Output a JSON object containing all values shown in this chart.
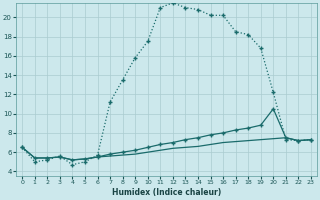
{
  "xlabel": "Humidex (Indice chaleur)",
  "bg_color": "#cce8ec",
  "grid_color": "#aaccd0",
  "line_color": "#1a6b6b",
  "xlim": [
    -0.5,
    23.5
  ],
  "ylim": [
    3.5,
    21.5
  ],
  "xticks": [
    0,
    1,
    2,
    3,
    4,
    5,
    6,
    7,
    8,
    9,
    10,
    11,
    12,
    13,
    14,
    15,
    16,
    17,
    18,
    19,
    20,
    21,
    22,
    23
  ],
  "yticks": [
    4,
    6,
    8,
    10,
    12,
    14,
    16,
    18,
    20
  ],
  "series_main_x": [
    0,
    1,
    2,
    3,
    4,
    5,
    6,
    7,
    8,
    9,
    10,
    11,
    12,
    13,
    14,
    15,
    16,
    17,
    18,
    19,
    20,
    21,
    22,
    23
  ],
  "series_main_y": [
    6.5,
    5.0,
    5.2,
    5.6,
    4.7,
    5.0,
    5.7,
    11.2,
    13.5,
    15.8,
    17.5,
    21.0,
    21.5,
    21.0,
    20.8,
    20.2,
    20.2,
    18.5,
    18.2,
    16.8,
    12.2,
    7.3,
    7.2,
    7.3
  ],
  "series2_x": [
    0,
    1,
    2,
    3,
    4,
    5,
    6,
    7,
    8,
    9,
    10,
    11,
    12,
    13,
    14,
    15,
    16,
    17,
    18,
    19,
    20,
    21,
    22,
    23
  ],
  "series2_y": [
    6.5,
    5.4,
    5.4,
    5.5,
    5.2,
    5.3,
    5.5,
    5.8,
    6.0,
    6.2,
    6.5,
    6.8,
    7.0,
    7.3,
    7.5,
    7.8,
    8.0,
    8.3,
    8.5,
    8.8,
    10.5,
    7.5,
    7.2,
    7.3
  ],
  "series3_x": [
    0,
    1,
    2,
    3,
    4,
    5,
    6,
    7,
    8,
    9,
    10,
    11,
    12,
    13,
    14,
    15,
    16,
    17,
    18,
    19,
    20,
    21,
    22,
    23
  ],
  "series3_y": [
    6.5,
    5.4,
    5.4,
    5.5,
    5.2,
    5.3,
    5.5,
    5.6,
    5.7,
    5.8,
    6.0,
    6.2,
    6.4,
    6.5,
    6.6,
    6.8,
    7.0,
    7.1,
    7.2,
    7.3,
    7.4,
    7.5,
    7.2,
    7.3
  ],
  "marker_size": 2.5,
  "line_width": 0.9
}
